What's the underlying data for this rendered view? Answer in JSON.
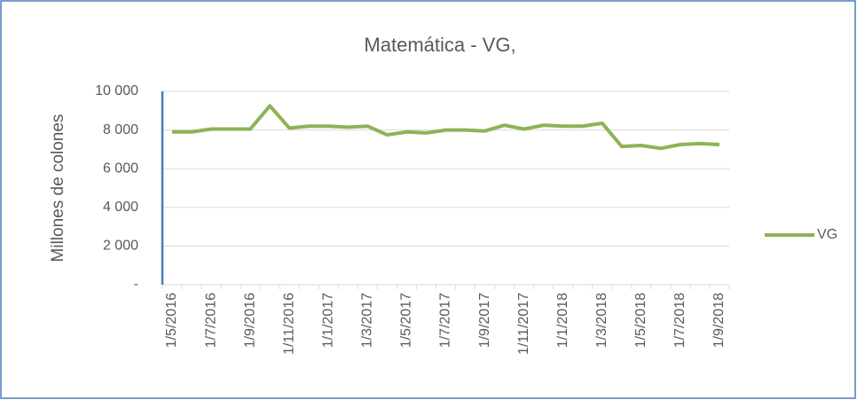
{
  "chart_data": {
    "type": "line",
    "title": "Matemática - VG,",
    "y_label": "Millones de colones",
    "categories": [
      "1/5/2016",
      null,
      "1/7/2016",
      null,
      "1/9/2016",
      null,
      "1/11/2016",
      null,
      "1/1/2017",
      null,
      "1/3/2017",
      null,
      "1/5/2017",
      null,
      "1/7/2017",
      null,
      "1/9/2017",
      null,
      "1/11/2017",
      null,
      "1/1/2018",
      null,
      "1/3/2018",
      null,
      "1/5/2018",
      null,
      "1/7/2018",
      null,
      "1/9/2018"
    ],
    "series": [
      {
        "name": "VG",
        "color": "#8db356",
        "values": [
          7900,
          7900,
          8050,
          8050,
          8050,
          9250,
          8100,
          8200,
          8200,
          8150,
          8200,
          7750,
          7900,
          7850,
          8000,
          8000,
          7950,
          8250,
          8050,
          8250,
          8200,
          8200,
          8350,
          7150,
          7200,
          7050,
          7250,
          7300,
          7250
        ]
      }
    ],
    "ylim": [
      0,
      10000
    ],
    "yticks": [
      {
        "value": 0,
        "label": "-"
      },
      {
        "value": 2000,
        "label": "2 000"
      },
      {
        "value": 4000,
        "label": "4 000"
      },
      {
        "value": 6000,
        "label": "6 000"
      },
      {
        "value": 8000,
        "label": "8 000"
      },
      {
        "value": 10000,
        "label": "10 000"
      }
    ],
    "grid": true,
    "legend": "right"
  }
}
